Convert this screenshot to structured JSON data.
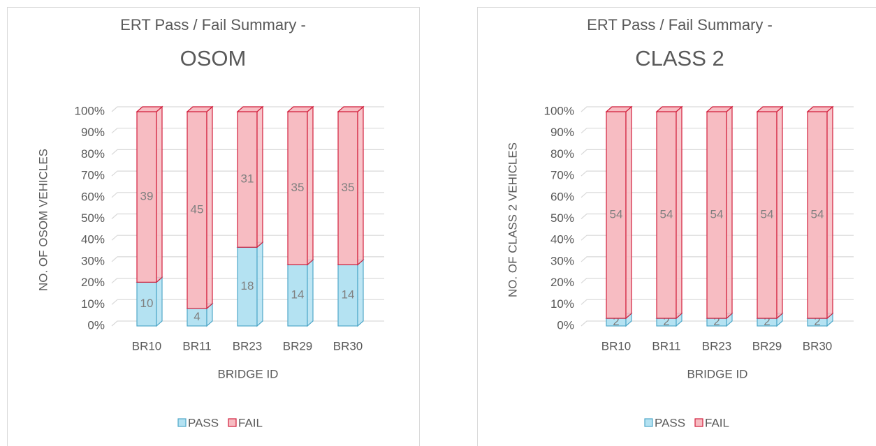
{
  "chart_data": [
    {
      "type": "bar",
      "stacking": "percent",
      "title": "ERT Pass / Fail Summary -",
      "subtitle": "OSOM",
      "x_label": "BRIDGE ID",
      "y_label": "NO. OF OSOM VEHICLES",
      "categories": [
        "BR10",
        "BR11",
        "BR23",
        "BR29",
        "BR30"
      ],
      "series": [
        {
          "name": "PASS",
          "color": "#b4e2f2",
          "edge": "#4fa8c9",
          "values": [
            10,
            4,
            18,
            14,
            14
          ]
        },
        {
          "name": "FAIL",
          "color": "#f7bcc2",
          "edge": "#d21f3c",
          "values": [
            39,
            45,
            31,
            35,
            35
          ]
        }
      ],
      "ylim": [
        0,
        100
      ],
      "yticks": [
        {
          "value": 0,
          "label": "0%"
        },
        {
          "value": 10,
          "label": "10%"
        },
        {
          "value": 20,
          "label": "20%"
        },
        {
          "value": 30,
          "label": "30%"
        },
        {
          "value": 40,
          "label": "40%"
        },
        {
          "value": 50,
          "label": "50%"
        },
        {
          "value": 60,
          "label": "60%"
        },
        {
          "value": 70,
          "label": "70%"
        },
        {
          "value": 80,
          "label": "80%"
        },
        {
          "value": 90,
          "label": "90%"
        },
        {
          "value": 100,
          "label": "100%"
        }
      ],
      "grid": true,
      "legend": "bottom"
    },
    {
      "type": "bar",
      "stacking": "percent",
      "title": "ERT Pass / Fail Summary -",
      "subtitle": "CLASS 2",
      "x_label": "BRIDGE ID",
      "y_label": "NO. OF CLASS 2 VEHICLES",
      "categories": [
        "BR10",
        "BR11",
        "BR23",
        "BR29",
        "BR30"
      ],
      "series": [
        {
          "name": "PASS",
          "color": "#b4e2f2",
          "edge": "#4fa8c9",
          "values": [
            2,
            2,
            2,
            2,
            2
          ]
        },
        {
          "name": "FAIL",
          "color": "#f7bcc2",
          "edge": "#d21f3c",
          "values": [
            54,
            54,
            54,
            54,
            54
          ]
        }
      ],
      "ylim": [
        0,
        100
      ],
      "yticks": [
        {
          "value": 0,
          "label": "0%"
        },
        {
          "value": 10,
          "label": "10%"
        },
        {
          "value": 20,
          "label": "20%"
        },
        {
          "value": 30,
          "label": "30%"
        },
        {
          "value": 40,
          "label": "40%"
        },
        {
          "value": 50,
          "label": "50%"
        },
        {
          "value": 60,
          "label": "60%"
        },
        {
          "value": 70,
          "label": "70%"
        },
        {
          "value": 80,
          "label": "80%"
        },
        {
          "value": 90,
          "label": "90%"
        },
        {
          "value": 100,
          "label": "100%"
        }
      ],
      "grid": true,
      "legend": "bottom"
    }
  ]
}
